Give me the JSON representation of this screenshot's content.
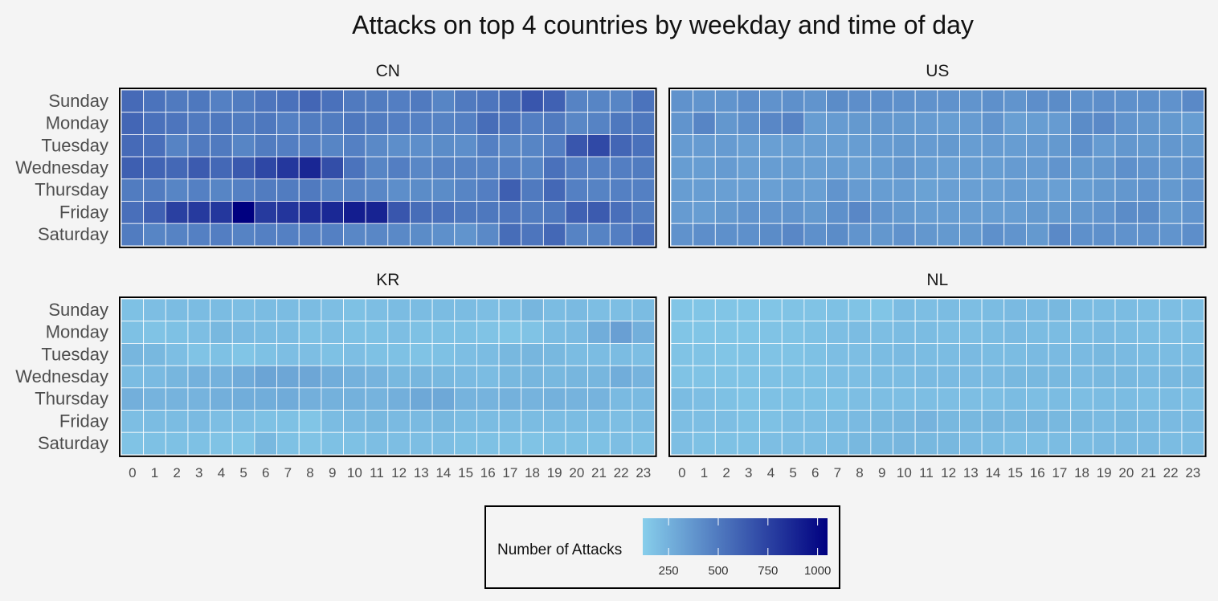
{
  "chart_data": {
    "type": "heatmap",
    "title": "Attacks on top 4 countries by weekday and time of day",
    "x_categories": [
      "0",
      "1",
      "2",
      "3",
      "4",
      "5",
      "6",
      "7",
      "8",
      "9",
      "10",
      "11",
      "12",
      "13",
      "14",
      "15",
      "16",
      "17",
      "18",
      "19",
      "20",
      "21",
      "22",
      "23"
    ],
    "y_categories": [
      "Sunday",
      "Monday",
      "Tuesday",
      "Wednesday",
      "Thursday",
      "Friday",
      "Saturday"
    ],
    "color_scale": {
      "low": "#87CEEB",
      "high": "#000080",
      "domain": [
        120,
        1050
      ]
    },
    "legend": {
      "title": "Number of Attacks",
      "ticks": [
        250,
        500,
        750,
        1000
      ],
      "position": "bottom"
    },
    "facets": [
      {
        "name": "CN",
        "values": [
          [
            570,
            530,
            500,
            510,
            470,
            490,
            520,
            540,
            590,
            540,
            500,
            490,
            480,
            500,
            450,
            500,
            520,
            560,
            660,
            610,
            460,
            450,
            450,
            530
          ],
          [
            590,
            540,
            520,
            500,
            510,
            490,
            510,
            470,
            490,
            490,
            510,
            490,
            480,
            470,
            460,
            470,
            560,
            530,
            480,
            500,
            440,
            460,
            510,
            510
          ],
          [
            570,
            550,
            460,
            500,
            500,
            450,
            490,
            480,
            470,
            450,
            470,
            430,
            410,
            410,
            420,
            410,
            470,
            440,
            450,
            480,
            660,
            720,
            590,
            540
          ],
          [
            620,
            600,
            580,
            640,
            580,
            650,
            730,
            800,
            880,
            700,
            530,
            450,
            480,
            440,
            460,
            460,
            460,
            470,
            450,
            540,
            480,
            470,
            480,
            490
          ],
          [
            490,
            490,
            450,
            470,
            450,
            470,
            490,
            490,
            500,
            460,
            460,
            440,
            410,
            420,
            420,
            450,
            480,
            620,
            500,
            580,
            470,
            460,
            470,
            470
          ],
          [
            550,
            610,
            760,
            790,
            800,
            1050,
            790,
            810,
            850,
            870,
            920,
            890,
            660,
            560,
            540,
            510,
            510,
            520,
            490,
            510,
            610,
            640,
            550,
            490
          ],
          [
            490,
            450,
            460,
            470,
            480,
            460,
            470,
            470,
            470,
            470,
            440,
            440,
            430,
            420,
            400,
            380,
            430,
            560,
            520,
            580,
            460,
            460,
            480,
            540
          ]
        ]
      },
      {
        "name": "US",
        "values": [
          [
            390,
            380,
            380,
            410,
            390,
            400,
            380,
            420,
            410,
            410,
            400,
            390,
            390,
            380,
            400,
            380,
            410,
            420,
            400,
            410,
            400,
            400,
            390,
            430
          ],
          [
            380,
            450,
            370,
            400,
            440,
            460,
            340,
            350,
            360,
            370,
            360,
            350,
            340,
            350,
            380,
            330,
            340,
            350,
            420,
            430,
            380,
            370,
            360,
            340
          ],
          [
            350,
            350,
            350,
            330,
            330,
            330,
            330,
            330,
            340,
            350,
            360,
            350,
            360,
            340,
            350,
            340,
            350,
            360,
            400,
            350,
            370,
            360,
            370,
            360
          ],
          [
            340,
            340,
            350,
            330,
            340,
            340,
            330,
            340,
            330,
            340,
            370,
            340,
            330,
            340,
            340,
            350,
            350,
            380,
            360,
            370,
            400,
            380,
            370,
            380
          ],
          [
            340,
            340,
            330,
            330,
            330,
            340,
            330,
            380,
            350,
            340,
            340,
            320,
            330,
            330,
            330,
            340,
            330,
            330,
            340,
            360,
            370,
            380,
            360,
            380
          ],
          [
            350,
            340,
            360,
            380,
            380,
            380,
            360,
            400,
            440,
            380,
            360,
            340,
            340,
            340,
            340,
            340,
            360,
            360,
            370,
            380,
            420,
            420,
            360,
            380
          ],
          [
            390,
            410,
            400,
            400,
            420,
            440,
            400,
            420,
            380,
            370,
            390,
            370,
            360,
            360,
            400,
            380,
            360,
            430,
            400,
            400,
            390,
            390,
            380,
            410
          ]
        ]
      },
      {
        "name": "KR",
        "values": [
          [
            180,
            190,
            200,
            200,
            200,
            190,
            200,
            200,
            200,
            190,
            180,
            190,
            200,
            200,
            200,
            200,
            190,
            190,
            230,
            200,
            210,
            190,
            190,
            200
          ],
          [
            180,
            170,
            180,
            190,
            220,
            210,
            200,
            200,
            180,
            190,
            180,
            180,
            190,
            180,
            180,
            180,
            170,
            160,
            170,
            200,
            210,
            270,
            330,
            260
          ],
          [
            230,
            220,
            190,
            170,
            180,
            160,
            180,
            190,
            190,
            180,
            190,
            180,
            180,
            170,
            180,
            190,
            200,
            220,
            230,
            220,
            200,
            200,
            200,
            190
          ],
          [
            200,
            210,
            230,
            250,
            250,
            280,
            310,
            300,
            300,
            270,
            250,
            240,
            220,
            230,
            220,
            210,
            200,
            220,
            230,
            220,
            230,
            230,
            270,
            240
          ],
          [
            260,
            240,
            240,
            240,
            260,
            270,
            270,
            280,
            260,
            250,
            250,
            240,
            260,
            290,
            290,
            240,
            240,
            250,
            240,
            250,
            240,
            240,
            210,
            210
          ],
          [
            190,
            200,
            200,
            210,
            190,
            190,
            180,
            180,
            160,
            200,
            210,
            220,
            210,
            210,
            220,
            200,
            200,
            200,
            200,
            200,
            200,
            200,
            190,
            200
          ],
          [
            170,
            180,
            180,
            180,
            170,
            160,
            220,
            180,
            170,
            180,
            180,
            190,
            190,
            190,
            190,
            180,
            180,
            180,
            170,
            180,
            180,
            180,
            190,
            180
          ]
        ]
      },
      {
        "name": "NL",
        "values": [
          [
            160,
            160,
            160,
            160,
            160,
            170,
            170,
            180,
            170,
            160,
            200,
            190,
            200,
            190,
            200,
            210,
            210,
            220,
            200,
            200,
            200,
            190,
            190,
            190
          ],
          [
            160,
            160,
            160,
            160,
            170,
            170,
            180,
            190,
            200,
            190,
            200,
            200,
            190,
            190,
            200,
            210,
            200,
            200,
            200,
            210,
            200,
            190,
            190,
            190
          ],
          [
            170,
            170,
            160,
            170,
            170,
            170,
            180,
            190,
            190,
            200,
            210,
            200,
            200,
            210,
            200,
            200,
            210,
            210,
            210,
            220,
            210,
            200,
            200,
            200
          ],
          [
            170,
            170,
            170,
            170,
            180,
            180,
            180,
            190,
            190,
            200,
            200,
            210,
            210,
            210,
            210,
            220,
            220,
            220,
            210,
            220,
            220,
            210,
            220,
            220
          ],
          [
            200,
            190,
            180,
            170,
            180,
            180,
            180,
            180,
            190,
            190,
            190,
            190,
            190,
            190,
            190,
            200,
            190,
            200,
            190,
            200,
            200,
            190,
            200,
            190
          ],
          [
            190,
            190,
            190,
            180,
            180,
            190,
            190,
            200,
            210,
            220,
            230,
            240,
            220,
            220,
            230,
            220,
            230,
            220,
            220,
            210,
            220,
            210,
            210,
            210
          ],
          [
            190,
            180,
            180,
            180,
            190,
            190,
            190,
            200,
            220,
            220,
            230,
            220,
            220,
            210,
            200,
            190,
            190,
            200,
            200,
            210,
            210,
            210,
            200,
            200
          ]
        ]
      }
    ]
  }
}
